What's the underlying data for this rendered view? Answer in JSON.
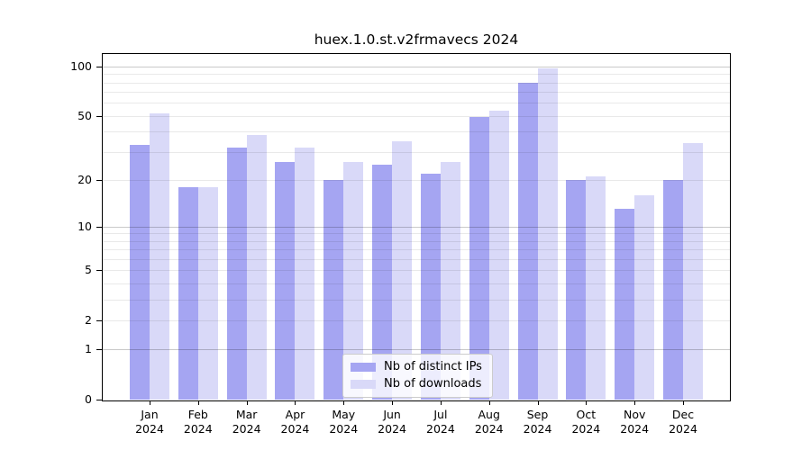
{
  "title": "huex.1.0.st.v2frmavecs 2024",
  "legend": {
    "items": [
      {
        "label": "Nb of distinct IPs"
      },
      {
        "label": "Nb of downloads"
      }
    ]
  },
  "chart_data": {
    "type": "bar",
    "title": "huex.1.0.st.v2frmavecs 2024",
    "categories": [
      "Jan",
      "Feb",
      "Mar",
      "Apr",
      "May",
      "Jun",
      "Jul",
      "Aug",
      "Sep",
      "Oct",
      "Nov",
      "Dec"
    ],
    "x_tick_labels": [
      [
        "Jan",
        "2024"
      ],
      [
        "Feb",
        "2024"
      ],
      [
        "Mar",
        "2024"
      ],
      [
        "Apr",
        "2024"
      ],
      [
        "May",
        "2024"
      ],
      [
        "Jun",
        "2024"
      ],
      [
        "Jul",
        "2024"
      ],
      [
        "Aug",
        "2024"
      ],
      [
        "Sep",
        "2024"
      ],
      [
        "Oct",
        "2024"
      ],
      [
        "Nov",
        "2024"
      ],
      [
        "Dec",
        "2024"
      ]
    ],
    "series": [
      {
        "name": "Nb of distinct IPs",
        "color": "#a5a5f2",
        "values": [
          33,
          18,
          32,
          26,
          20,
          25,
          22,
          49,
          80,
          20,
          13,
          20
        ]
      },
      {
        "name": "Nb of downloads",
        "color": "#d9d9f8",
        "values": [
          52,
          18,
          38,
          32,
          26,
          35,
          26,
          54,
          97,
          21,
          16,
          34
        ]
      }
    ],
    "xlabel": "",
    "ylabel": "",
    "yscale": "log1p",
    "ylim": [
      0,
      119
    ],
    "yticks": [
      0,
      1,
      2,
      5,
      10,
      20,
      50,
      100
    ],
    "grid": "on",
    "grid_major_values": [
      1,
      10,
      100
    ],
    "grid_minor_values": [
      2,
      3,
      4,
      5,
      6,
      7,
      8,
      9,
      20,
      30,
      40,
      50,
      60,
      70,
      80,
      90
    ],
    "legend_position": "lower center"
  },
  "colors": {
    "distinct_ips_bar": "#a5a5f2",
    "downloads_bar": "#d9d9f8",
    "grid_major": "#c9c9c9",
    "grid_minor": "#e9e9e9",
    "axis": "#000000",
    "legend_border": "#cccccc",
    "background": "#ffffff"
  }
}
